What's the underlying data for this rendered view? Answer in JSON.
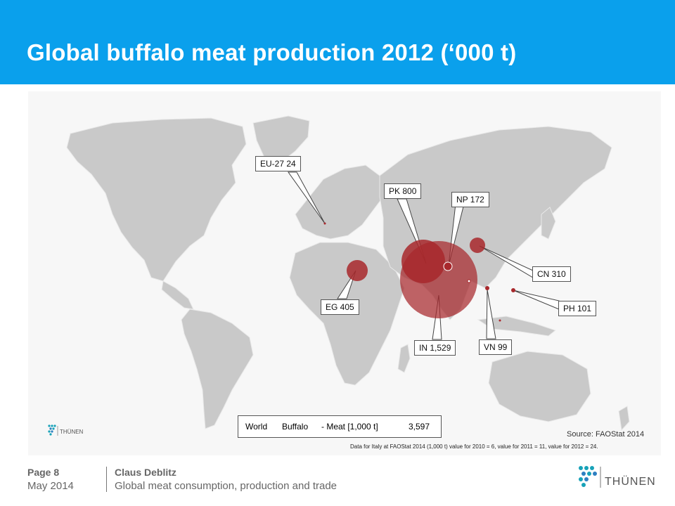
{
  "slide": {
    "title": "Global buffalo meat production 2012 (‘000 t)"
  },
  "map": {
    "callouts": [
      {
        "id": "eu27",
        "label": "EU-27  24"
      },
      {
        "id": "pk",
        "label": "PK  800"
      },
      {
        "id": "np",
        "label": "NP  172"
      },
      {
        "id": "cn",
        "label": "CN  310"
      },
      {
        "id": "eg",
        "label": "EG  405"
      },
      {
        "id": "ph",
        "label": "PH  101"
      },
      {
        "id": "in",
        "label": "IN  1,529"
      },
      {
        "id": "vn",
        "label": "VN  99"
      }
    ],
    "world_box": {
      "region": "World",
      "item": "Buffalo",
      "measure": "- Meat [1,000 t]",
      "value": "3,597"
    },
    "source": "Source:  FAOStat 2014",
    "note": "Data for Italy at FAOStat 2014 (1,000 t) value for 2010 = 6, value for 2011 = 11, value for 2012 = 24.",
    "small_logo_text": "THÜNEN"
  },
  "footer": {
    "page": "Page 8",
    "date": "May 2014",
    "author": "Claus Deblitz",
    "subtitle": "Global meat consumption, production and trade",
    "logo_text": "THÜNEN"
  },
  "colors": {
    "header": "#0AA0EC",
    "land": "#c9c9c9",
    "bubble": "#A8282C",
    "logo_teal": "#17A2B8"
  }
}
